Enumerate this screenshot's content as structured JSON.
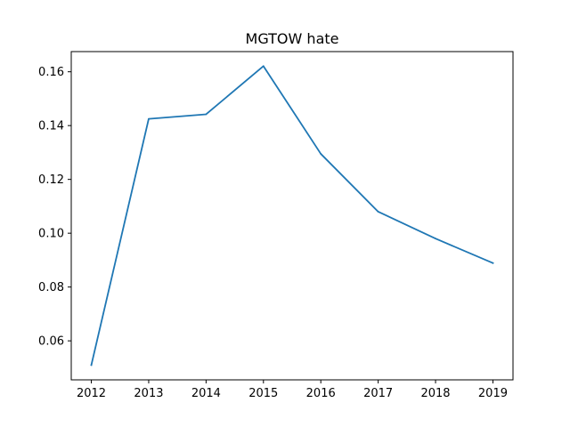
{
  "chart_data": {
    "type": "line",
    "title": "MGTOW hate",
    "xlabel": "",
    "ylabel": "",
    "x": [
      2012,
      2013,
      2014,
      2015,
      2016,
      2017,
      2018,
      2019
    ],
    "series": [
      {
        "values": [
          0.051,
          0.1425,
          0.1442,
          0.1621,
          0.1295,
          0.108,
          0.098,
          0.0889
        ]
      }
    ],
    "xlim": [
      2011.65,
      2019.35
    ],
    "ylim": [
      0.0455,
      0.1675
    ],
    "xticks": [
      2012,
      2013,
      2014,
      2015,
      2016,
      2017,
      2018,
      2019
    ],
    "xtick_labels": [
      "2012",
      "2013",
      "2014",
      "2015",
      "2016",
      "2017",
      "2018",
      "2019"
    ],
    "yticks": [
      0.06,
      0.08,
      0.1,
      0.12,
      0.14,
      0.16
    ],
    "ytick_labels": [
      "0.06",
      "0.08",
      "0.10",
      "0.12",
      "0.14",
      "0.16"
    ],
    "grid": false,
    "line_color": "#1f77b4"
  }
}
